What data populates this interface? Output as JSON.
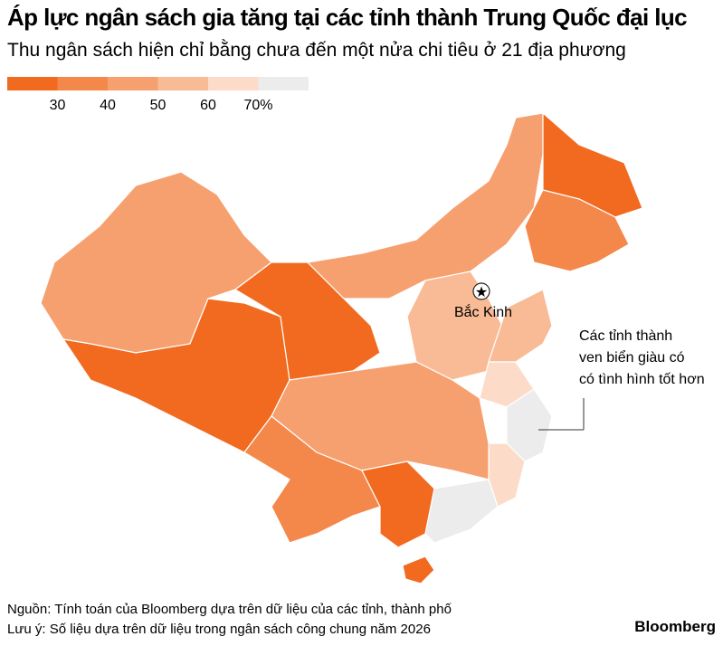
{
  "header": {
    "title": "Áp lực ngân sách gia tăng tại các tỉnh thành Trung Quốc đại lục",
    "subtitle": "Thu ngân sách hiện chỉ bằng chưa đến một nửa chi tiêu ở 21 địa phương"
  },
  "legend": {
    "colors": [
      "#f26a1f",
      "#f4874a",
      "#f6a06f",
      "#f9bb96",
      "#fcdcc8",
      "#ececec"
    ],
    "labels": [
      "30",
      "40",
      "50",
      "60",
      "70%"
    ]
  },
  "map": {
    "capital": "Bắc Kinh",
    "annotation": [
      "Các tỉnh thành",
      "ven biển giàu có",
      "có tình hình tốt hơn"
    ]
  },
  "footer": {
    "source": "Nguồn: Tính toán của Bloomberg dựa trên dữ liệu của các tỉnh, thành phố",
    "note": "Lưu ý: Số liệu dựa trên dữ liệu trong ngân sách công chung năm 2026",
    "brand": "Bloomberg"
  }
}
